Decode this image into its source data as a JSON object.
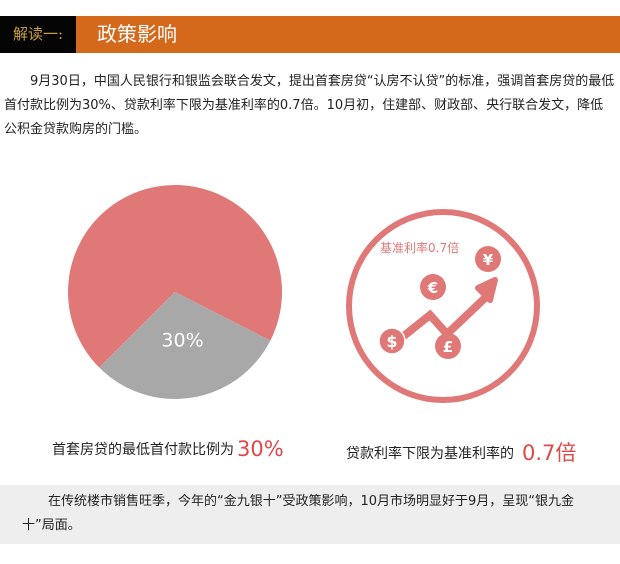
{
  "header": {
    "label": "解读一:",
    "title": "政策影响"
  },
  "intro": "9月30日，中国人民银行和银监会联合发文，提出首套房贷“认房不认贷”的标准，强调首套房贷的最低首付款比例为30%、贷款利率下限为基准利率的0.7倍。10月初，住建部、财政部、央行联合发文，降低公积金贷款购房的门槛。",
  "chart_data": {
    "type": "pie",
    "slices": [
      {
        "label": "30%",
        "value": 30,
        "color": "#a8a8a8"
      },
      {
        "value": 70,
        "color": "#e07878"
      }
    ]
  },
  "rate_graphic": {
    "label": "基准利率0.7倍",
    "icons": [
      "dollar-icon",
      "euro-icon",
      "pound-icon",
      "yuan-icon",
      "rising-arrow-icon"
    ],
    "color": "#e07878"
  },
  "captions": {
    "left_text": "首套房贷的最低首付款比例为",
    "left_value": "30%",
    "right_text": "贷款利率下限为基准利率的",
    "right_value": "0.7倍"
  },
  "note": "在传统楼市销售旺季，今年的“金九银十”受政策影响，10月市场明显好于9月，呈现“银九金十”局面。"
}
